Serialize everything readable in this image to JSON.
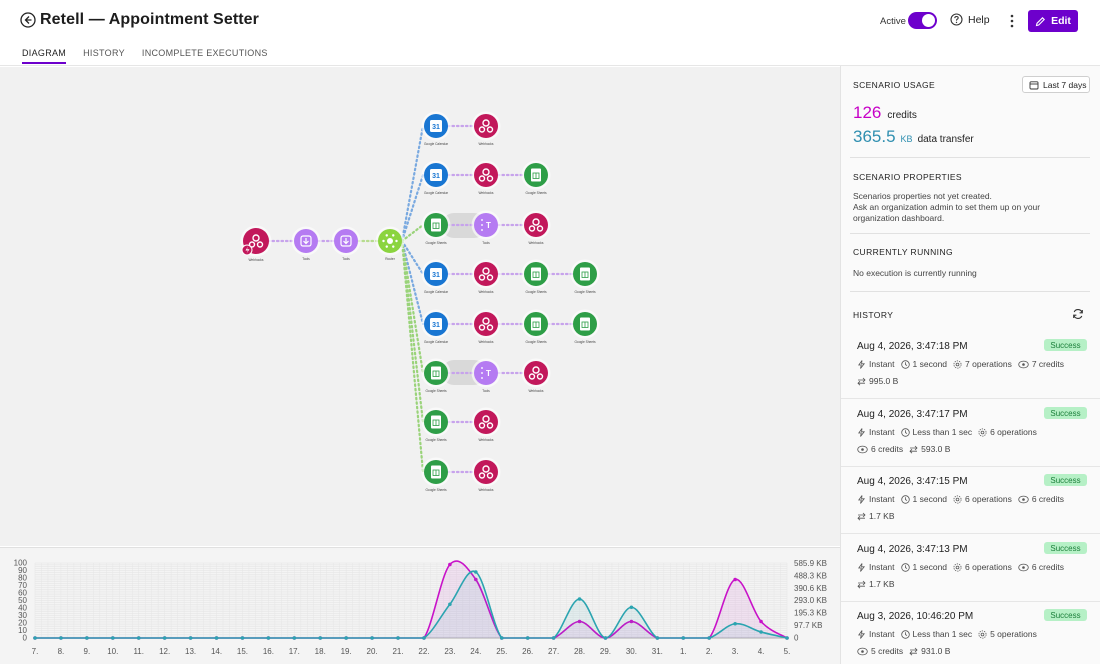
{
  "header": {
    "title": "Retell — Appointment Setter",
    "active_label": "Active",
    "help_label": "Help",
    "edit_label": "Edit",
    "tabs": [
      {
        "label": "DIAGRAM",
        "active": true
      },
      {
        "label": "HISTORY",
        "active": false
      },
      {
        "label": "INCOMPLETE EXECUTIONS",
        "active": false
      }
    ],
    "accent_color": "#6d00cc"
  },
  "diagram": {
    "modules": [
      {
        "name": "webhook",
        "label": "Webhooks",
        "color": "#c2185b"
      },
      {
        "name": "tools",
        "label": "Tools",
        "color": "#b57bf2"
      },
      {
        "name": "router",
        "label": "Router",
        "color": "#8bd43f"
      },
      {
        "name": "google-calendar",
        "label": "Google Calendar",
        "color": "#1976d2"
      },
      {
        "name": "google-sheets",
        "label": "Google Sheets",
        "color": "#2e9e47"
      }
    ]
  },
  "usage": {
    "section_title": "SCENARIO USAGE",
    "range_label": "Last 7 days",
    "credits_value": "126",
    "credits_label": "credits",
    "transfer_value": "365.5",
    "transfer_unit": "KB",
    "transfer_label": "data transfer"
  },
  "properties": {
    "section_title": "SCENARIO PROPERTIES",
    "line1": "Scenarios properties not yet created.",
    "line2": "Ask an organization admin to set them up on your",
    "line3": "organization dashboard."
  },
  "running": {
    "section_title": "CURRENTLY RUNNING",
    "text": "No execution is currently running"
  },
  "history": {
    "section_title": "HISTORY",
    "items": [
      {
        "date": "Aug 4, 2026, 3:47:18 PM",
        "status": "Success",
        "trigger": "Instant",
        "duration": "1 second",
        "operations": "7 operations",
        "credits": "7 credits",
        "transfer": "995.0 B"
      },
      {
        "date": "Aug 4, 2026, 3:47:17 PM",
        "status": "Success",
        "trigger": "Instant",
        "duration": "Less than 1 sec",
        "operations": "6 operations",
        "credits": "6 credits",
        "transfer": "593.0 B"
      },
      {
        "date": "Aug 4, 2026, 3:47:15 PM",
        "status": "Success",
        "trigger": "Instant",
        "duration": "1 second",
        "operations": "6 operations",
        "credits": "6 credits",
        "transfer": "1.7 KB"
      },
      {
        "date": "Aug 4, 2026, 3:47:13 PM",
        "status": "Success",
        "trigger": "Instant",
        "duration": "1 second",
        "operations": "6 operations",
        "credits": "6 credits",
        "transfer": "1.7 KB"
      },
      {
        "date": "Aug 3, 2026, 10:46:20 PM",
        "status": "Success",
        "trigger": "Instant",
        "duration": "Less than 1 sec",
        "operations": "5 operations",
        "credits": "5 credits",
        "transfer": "931.0 B"
      }
    ]
  },
  "chart_data": {
    "type": "line",
    "categories": [
      "7.",
      "8.",
      "9.",
      "10.",
      "11.",
      "12.",
      "13.",
      "14.",
      "15.",
      "16.",
      "17.",
      "18.",
      "19.",
      "20.",
      "21.",
      "22.",
      "23.",
      "24.",
      "25.",
      "26.",
      "27.",
      "28.",
      "29.",
      "30.",
      "31.",
      "1.",
      "2.",
      "3.",
      "4.",
      "5."
    ],
    "y_left_ticks": [
      "0",
      "10",
      "20",
      "30",
      "40",
      "50",
      "60",
      "70",
      "80",
      "90",
      "100"
    ],
    "y_right_ticks": [
      "0",
      "97.7 KB",
      "195.3 KB",
      "293.0 KB",
      "390.6 KB",
      "488.3 KB",
      "585.9 KB"
    ],
    "ylim": [
      0,
      100
    ],
    "grid": true,
    "series": [
      {
        "color": "#c812c8",
        "values": [
          0,
          0,
          0,
          0,
          0,
          0,
          0,
          0,
          0,
          0,
          0,
          0,
          0,
          0,
          0,
          0,
          98,
          78,
          0,
          0,
          0,
          22,
          0,
          22,
          0,
          0,
          0,
          78,
          22,
          0
        ]
      },
      {
        "color": "#2ba4b0",
        "values": [
          0,
          0,
          0,
          0,
          0,
          0,
          0,
          0,
          0,
          0,
          0,
          0,
          0,
          0,
          0,
          0,
          45,
          88,
          0,
          0,
          0,
          52,
          0,
          41,
          0,
          0,
          0,
          19,
          8,
          0
        ]
      }
    ]
  }
}
